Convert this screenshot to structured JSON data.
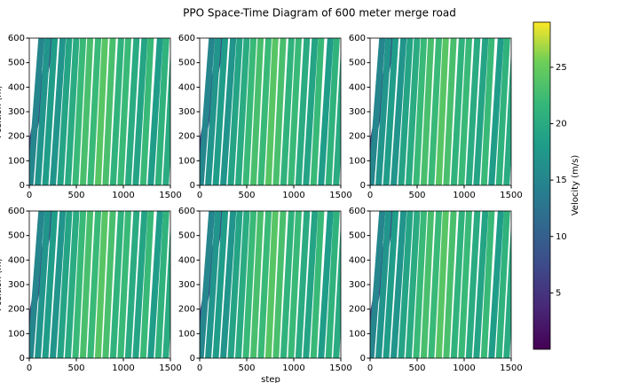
{
  "chart_data": {
    "type": "space-time",
    "title": "PPO Space-Time Diagram of 600 meter merge road",
    "xlabel": "step",
    "ylabel": "Position (m)",
    "xlim": [
      0,
      1500
    ],
    "ylim": [
      0,
      600
    ],
    "xticks": [
      0,
      500,
      1000,
      1500
    ],
    "yticks": [
      0,
      100,
      200,
      300,
      400,
      500,
      600
    ],
    "colorbar": {
      "label": "Velocity (m/s)",
      "lim": [
        0,
        29
      ],
      "ticks": [
        5,
        10,
        15,
        20,
        25
      ]
    },
    "panels": [
      {
        "starts": [
          -60,
          10,
          90,
          170,
          250,
          330,
          410,
          490,
          570,
          650,
          730,
          810,
          890,
          970,
          1050,
          1130,
          1210,
          1290,
          1370,
          1450
        ],
        "ends": [
          240,
          130,
          196,
          270,
          356,
          425,
          500,
          572,
          648,
          732,
          805,
          888,
          976,
          1052,
          1140,
          1225,
          1292,
          1390,
          1456,
          1540
        ],
        "velocities": [
          6,
          15,
          17,
          18,
          17,
          19,
          20,
          22,
          23,
          22,
          24,
          23,
          21,
          22,
          20,
          19,
          22,
          18,
          21,
          20
        ]
      },
      {
        "starts": [
          -60,
          10,
          90,
          170,
          250,
          330,
          410,
          490,
          570,
          650,
          730,
          810,
          890,
          970,
          1050,
          1130,
          1210,
          1290,
          1370,
          1450
        ],
        "ends": [
          240,
          130,
          196,
          270,
          356,
          425,
          500,
          572,
          648,
          732,
          805,
          888,
          976,
          1052,
          1140,
          1225,
          1292,
          1390,
          1456,
          1540
        ],
        "velocities": [
          6,
          15,
          17,
          18,
          17,
          19,
          20,
          22,
          23,
          22,
          24,
          23,
          21,
          22,
          20,
          19,
          22,
          18,
          21,
          20
        ]
      },
      {
        "starts": [
          -60,
          10,
          90,
          170,
          250,
          330,
          410,
          490,
          570,
          650,
          730,
          810,
          890,
          970,
          1050,
          1130,
          1210,
          1290,
          1370,
          1450
        ],
        "ends": [
          240,
          130,
          196,
          270,
          356,
          425,
          500,
          572,
          648,
          732,
          805,
          888,
          976,
          1052,
          1140,
          1225,
          1292,
          1390,
          1456,
          1540
        ],
        "velocities": [
          6,
          15,
          17,
          18,
          17,
          19,
          20,
          22,
          23,
          22,
          24,
          23,
          21,
          22,
          20,
          19,
          22,
          18,
          21,
          20
        ]
      },
      {
        "starts": [
          -60,
          10,
          90,
          170,
          250,
          330,
          410,
          490,
          570,
          650,
          730,
          810,
          890,
          970,
          1050,
          1130,
          1210,
          1290,
          1370,
          1450
        ],
        "ends": [
          240,
          130,
          196,
          270,
          356,
          425,
          500,
          572,
          648,
          732,
          805,
          888,
          976,
          1052,
          1140,
          1225,
          1292,
          1390,
          1456,
          1540
        ],
        "velocities": [
          6,
          15,
          17,
          18,
          17,
          19,
          20,
          22,
          23,
          22,
          24,
          23,
          21,
          22,
          20,
          19,
          22,
          18,
          21,
          20
        ]
      },
      {
        "starts": [
          -60,
          10,
          90,
          170,
          250,
          330,
          410,
          490,
          570,
          650,
          730,
          810,
          890,
          970,
          1050,
          1130,
          1210,
          1290,
          1370,
          1450
        ],
        "ends": [
          240,
          130,
          196,
          270,
          356,
          425,
          500,
          572,
          648,
          732,
          805,
          888,
          976,
          1052,
          1140,
          1225,
          1292,
          1390,
          1456,
          1540
        ],
        "velocities": [
          6,
          15,
          17,
          18,
          17,
          19,
          20,
          22,
          23,
          22,
          24,
          23,
          21,
          22,
          20,
          19,
          22,
          18,
          21,
          20
        ]
      },
      {
        "starts": [
          -60,
          10,
          90,
          170,
          250,
          330,
          410,
          490,
          570,
          650,
          730,
          810,
          890,
          970,
          1050,
          1130,
          1210,
          1290,
          1370,
          1450
        ],
        "ends": [
          240,
          130,
          196,
          270,
          356,
          425,
          500,
          572,
          648,
          732,
          805,
          888,
          976,
          1052,
          1140,
          1225,
          1292,
          1390,
          1456,
          1540
        ],
        "velocities": [
          6,
          15,
          17,
          18,
          17,
          19,
          20,
          22,
          23,
          22,
          24,
          23,
          21,
          22,
          20,
          19,
          22,
          18,
          21,
          20
        ]
      }
    ]
  }
}
